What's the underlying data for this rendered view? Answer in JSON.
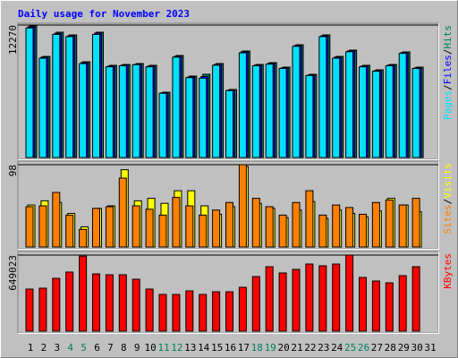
{
  "title": "Daily usage for November 2023",
  "separator": "/",
  "chart_data": [
    {
      "type": "bar",
      "ylim": [
        0,
        12270
      ],
      "yticks": [
        12270
      ],
      "grid": true,
      "series": [
        {
          "name": "Hits",
          "color": "#00805c",
          "values": [
            12190,
            9368,
            11607,
            11358,
            8871,
            11607,
            8539,
            8622,
            8705,
            8539,
            6052,
            9451,
            7544,
            7710,
            8705,
            6301,
            9866,
            8622,
            8788,
            8373,
            10446,
            7710,
            11358,
            9368,
            9949,
            8539,
            8125,
            8622,
            9783,
            8373,
            null
          ]
        },
        {
          "name": "Files",
          "color": "#0000ff",
          "values": [
            12100,
            9300,
            11500,
            11280,
            8800,
            11520,
            8470,
            8560,
            8640,
            8470,
            6000,
            9380,
            7470,
            7500,
            8630,
            6250,
            9800,
            8560,
            8720,
            8300,
            10370,
            7640,
            11280,
            9300,
            9880,
            8470,
            8060,
            8560,
            9720,
            8300,
            null
          ]
        },
        {
          "name": "Pages",
          "color": "#00e0ff",
          "values": [
            12000,
            9200,
            11400,
            11200,
            8700,
            11400,
            8400,
            8500,
            8600,
            8400,
            5950,
            9300,
            7400,
            7350,
            8550,
            6200,
            9700,
            8500,
            8650,
            8250,
            10300,
            7600,
            11200,
            9200,
            9800,
            8400,
            8000,
            8500,
            9650,
            8250,
            null
          ]
        }
      ]
    },
    {
      "type": "bar",
      "ylim": [
        0,
        98
      ],
      "yticks": [
        98
      ],
      "grid": true,
      "series": [
        {
          "name": "Visits",
          "color": "#ffff00",
          "values": [
            50,
            55,
            53,
            40,
            24,
            46,
            49,
            92,
            55,
            58,
            52,
            67,
            67,
            49,
            39,
            48,
            96,
            52,
            46,
            35,
            44,
            54,
            34,
            44,
            40,
            36,
            43,
            58,
            50,
            42,
            null
          ]
        },
        {
          "name": "Sites",
          "color": "#ff8000",
          "values": [
            48,
            49,
            65,
            38,
            21,
            46,
            48,
            82,
            49,
            45,
            38,
            59,
            49,
            38,
            44,
            53,
            98,
            58,
            48,
            38,
            53,
            67,
            38,
            50,
            47,
            39,
            53,
            56,
            50,
            58,
            null
          ]
        }
      ]
    },
    {
      "type": "bar",
      "ylim": [
        0,
        649023
      ],
      "yticks": [
        649023
      ],
      "grid": true,
      "categories": [
        "1",
        "2",
        "3",
        "4",
        "5",
        "6",
        "7",
        "8",
        "9",
        "10",
        "11",
        "12",
        "13",
        "14",
        "15",
        "16",
        "17",
        "18",
        "19",
        "20",
        "21",
        "22",
        "23",
        "24",
        "25",
        "26",
        "27",
        "28",
        "29",
        "30",
        "31"
      ],
      "highlight_categories": [
        "4",
        "5",
        "11",
        "12",
        "18",
        "19",
        "25",
        "26"
      ],
      "category_color": "#000000",
      "highlight_color": "#00805c",
      "series": [
        {
          "name": "KBytes",
          "color": "#ff0000",
          "values": [
            358877,
            366513,
            450500,
            503950,
            640000,
            488680,
            481045,
            481045,
            442865,
            358877,
            313060,
            313060,
            343600,
            313060,
            335970,
            335970,
            374150,
            465770,
            549760,
            496310,
            526850,
            572660,
            557390,
            572660,
            649023,
            458130,
            427590,
            412320,
            473410,
            549760,
            null
          ]
        }
      ]
    }
  ]
}
